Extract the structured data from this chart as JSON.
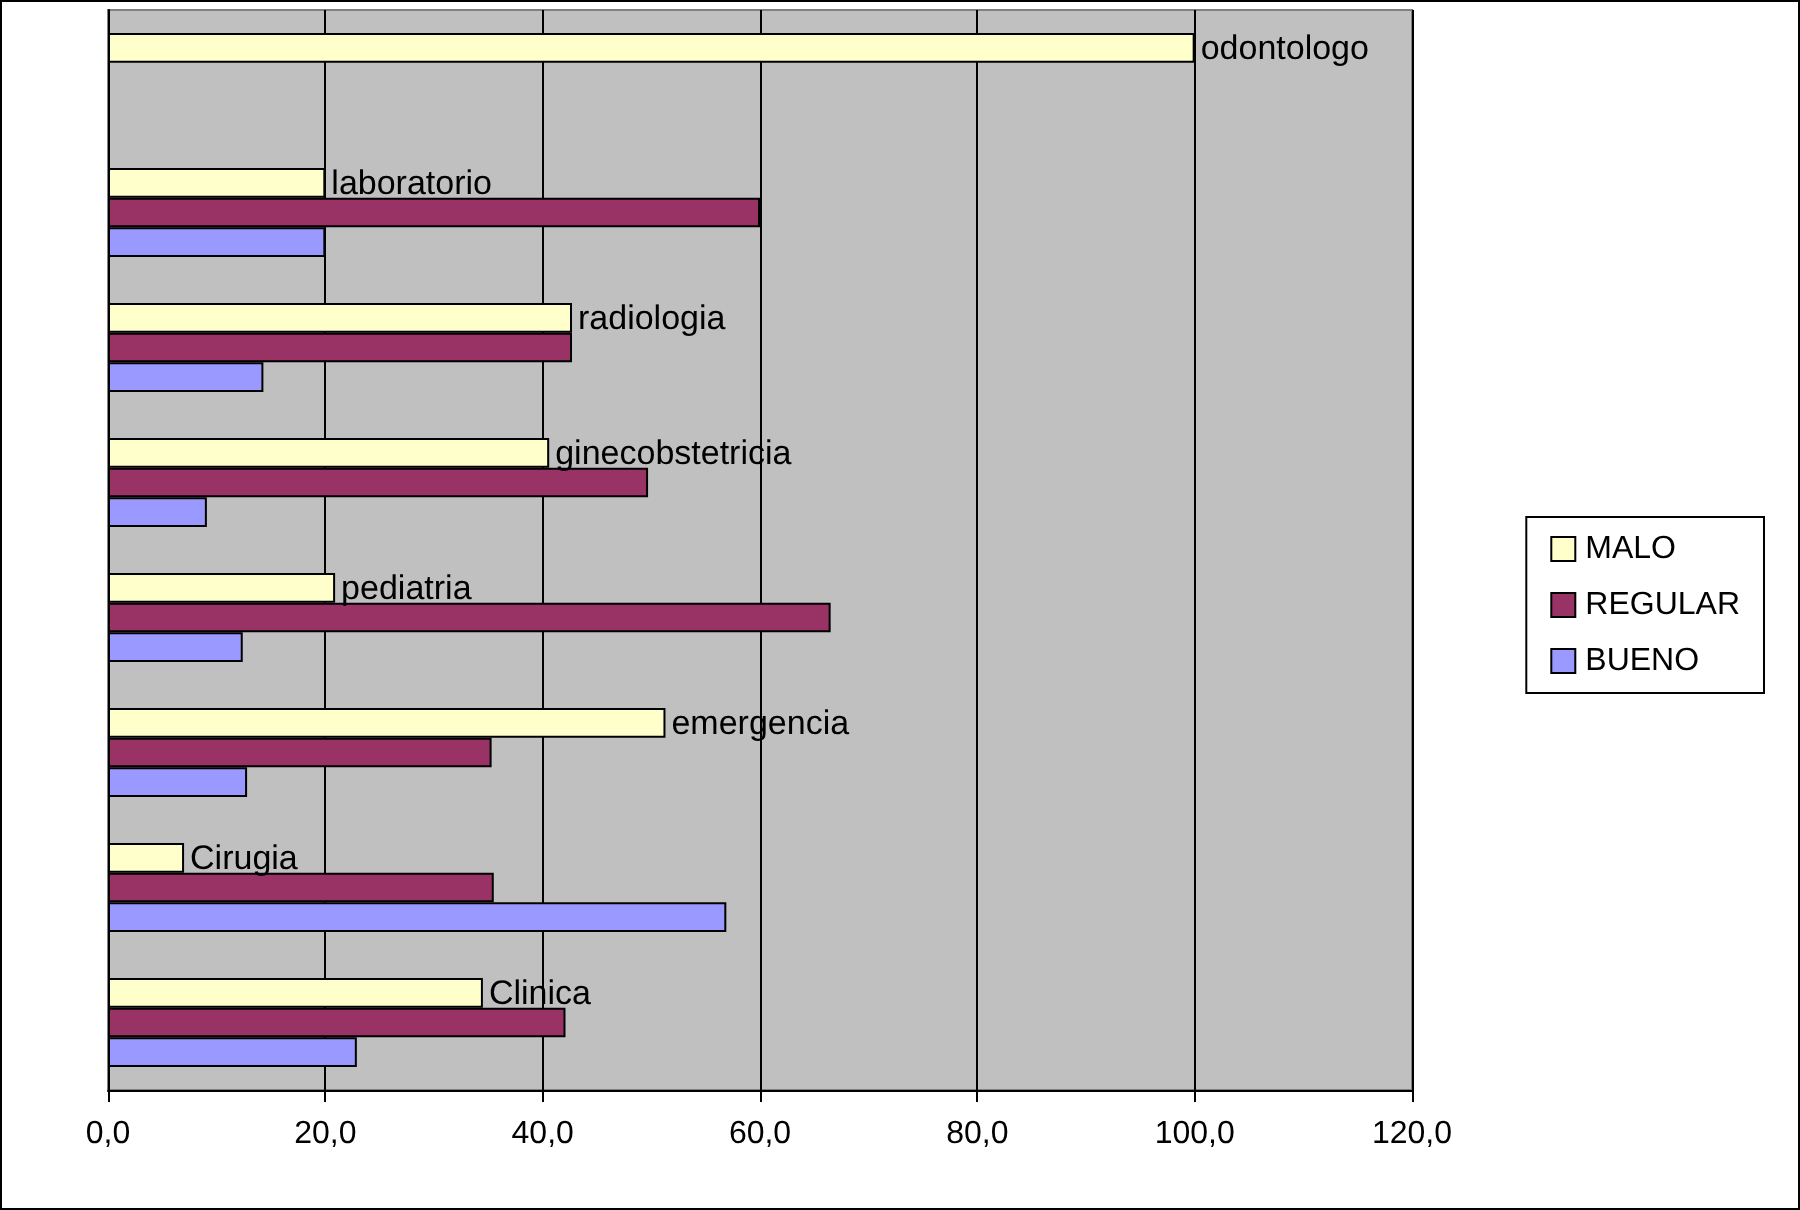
{
  "chart_data": {
    "type": "bar",
    "orientation": "horizontal",
    "categories": [
      "odontologo",
      "laboratorio",
      "radiologia",
      "ginecobstetricia",
      "pediatria",
      "emergencia",
      "Cirugia",
      "Clinica"
    ],
    "series": [
      {
        "name": "MALO",
        "color": "#ffffcc",
        "values": [
          100,
          20,
          42.7,
          40.6,
          20.9,
          51.3,
          7.0,
          34.5
        ]
      },
      {
        "name": "REGULAR",
        "color": "#993366",
        "values": [
          null,
          60,
          42.7,
          49.7,
          66.5,
          35.3,
          35.5,
          42.1
        ]
      },
      {
        "name": "BUENO",
        "color": "#9999ff",
        "values": [
          null,
          20,
          14.3,
          9.1,
          12.4,
          12.8,
          56.9,
          22.9
        ]
      }
    ],
    "xlim": [
      0,
      120
    ],
    "xticks": [
      {
        "value": 0,
        "label": "0,0"
      },
      {
        "value": 20,
        "label": "20,0"
      },
      {
        "value": 40,
        "label": "40,0"
      },
      {
        "value": 60,
        "label": "60,0"
      },
      {
        "value": 80,
        "label": "80,0"
      },
      {
        "value": 100,
        "label": "100,0"
      },
      {
        "value": 120,
        "label": "120,0"
      }
    ],
    "grid": "x",
    "legend": "right",
    "tick_labels": "x"
  }
}
